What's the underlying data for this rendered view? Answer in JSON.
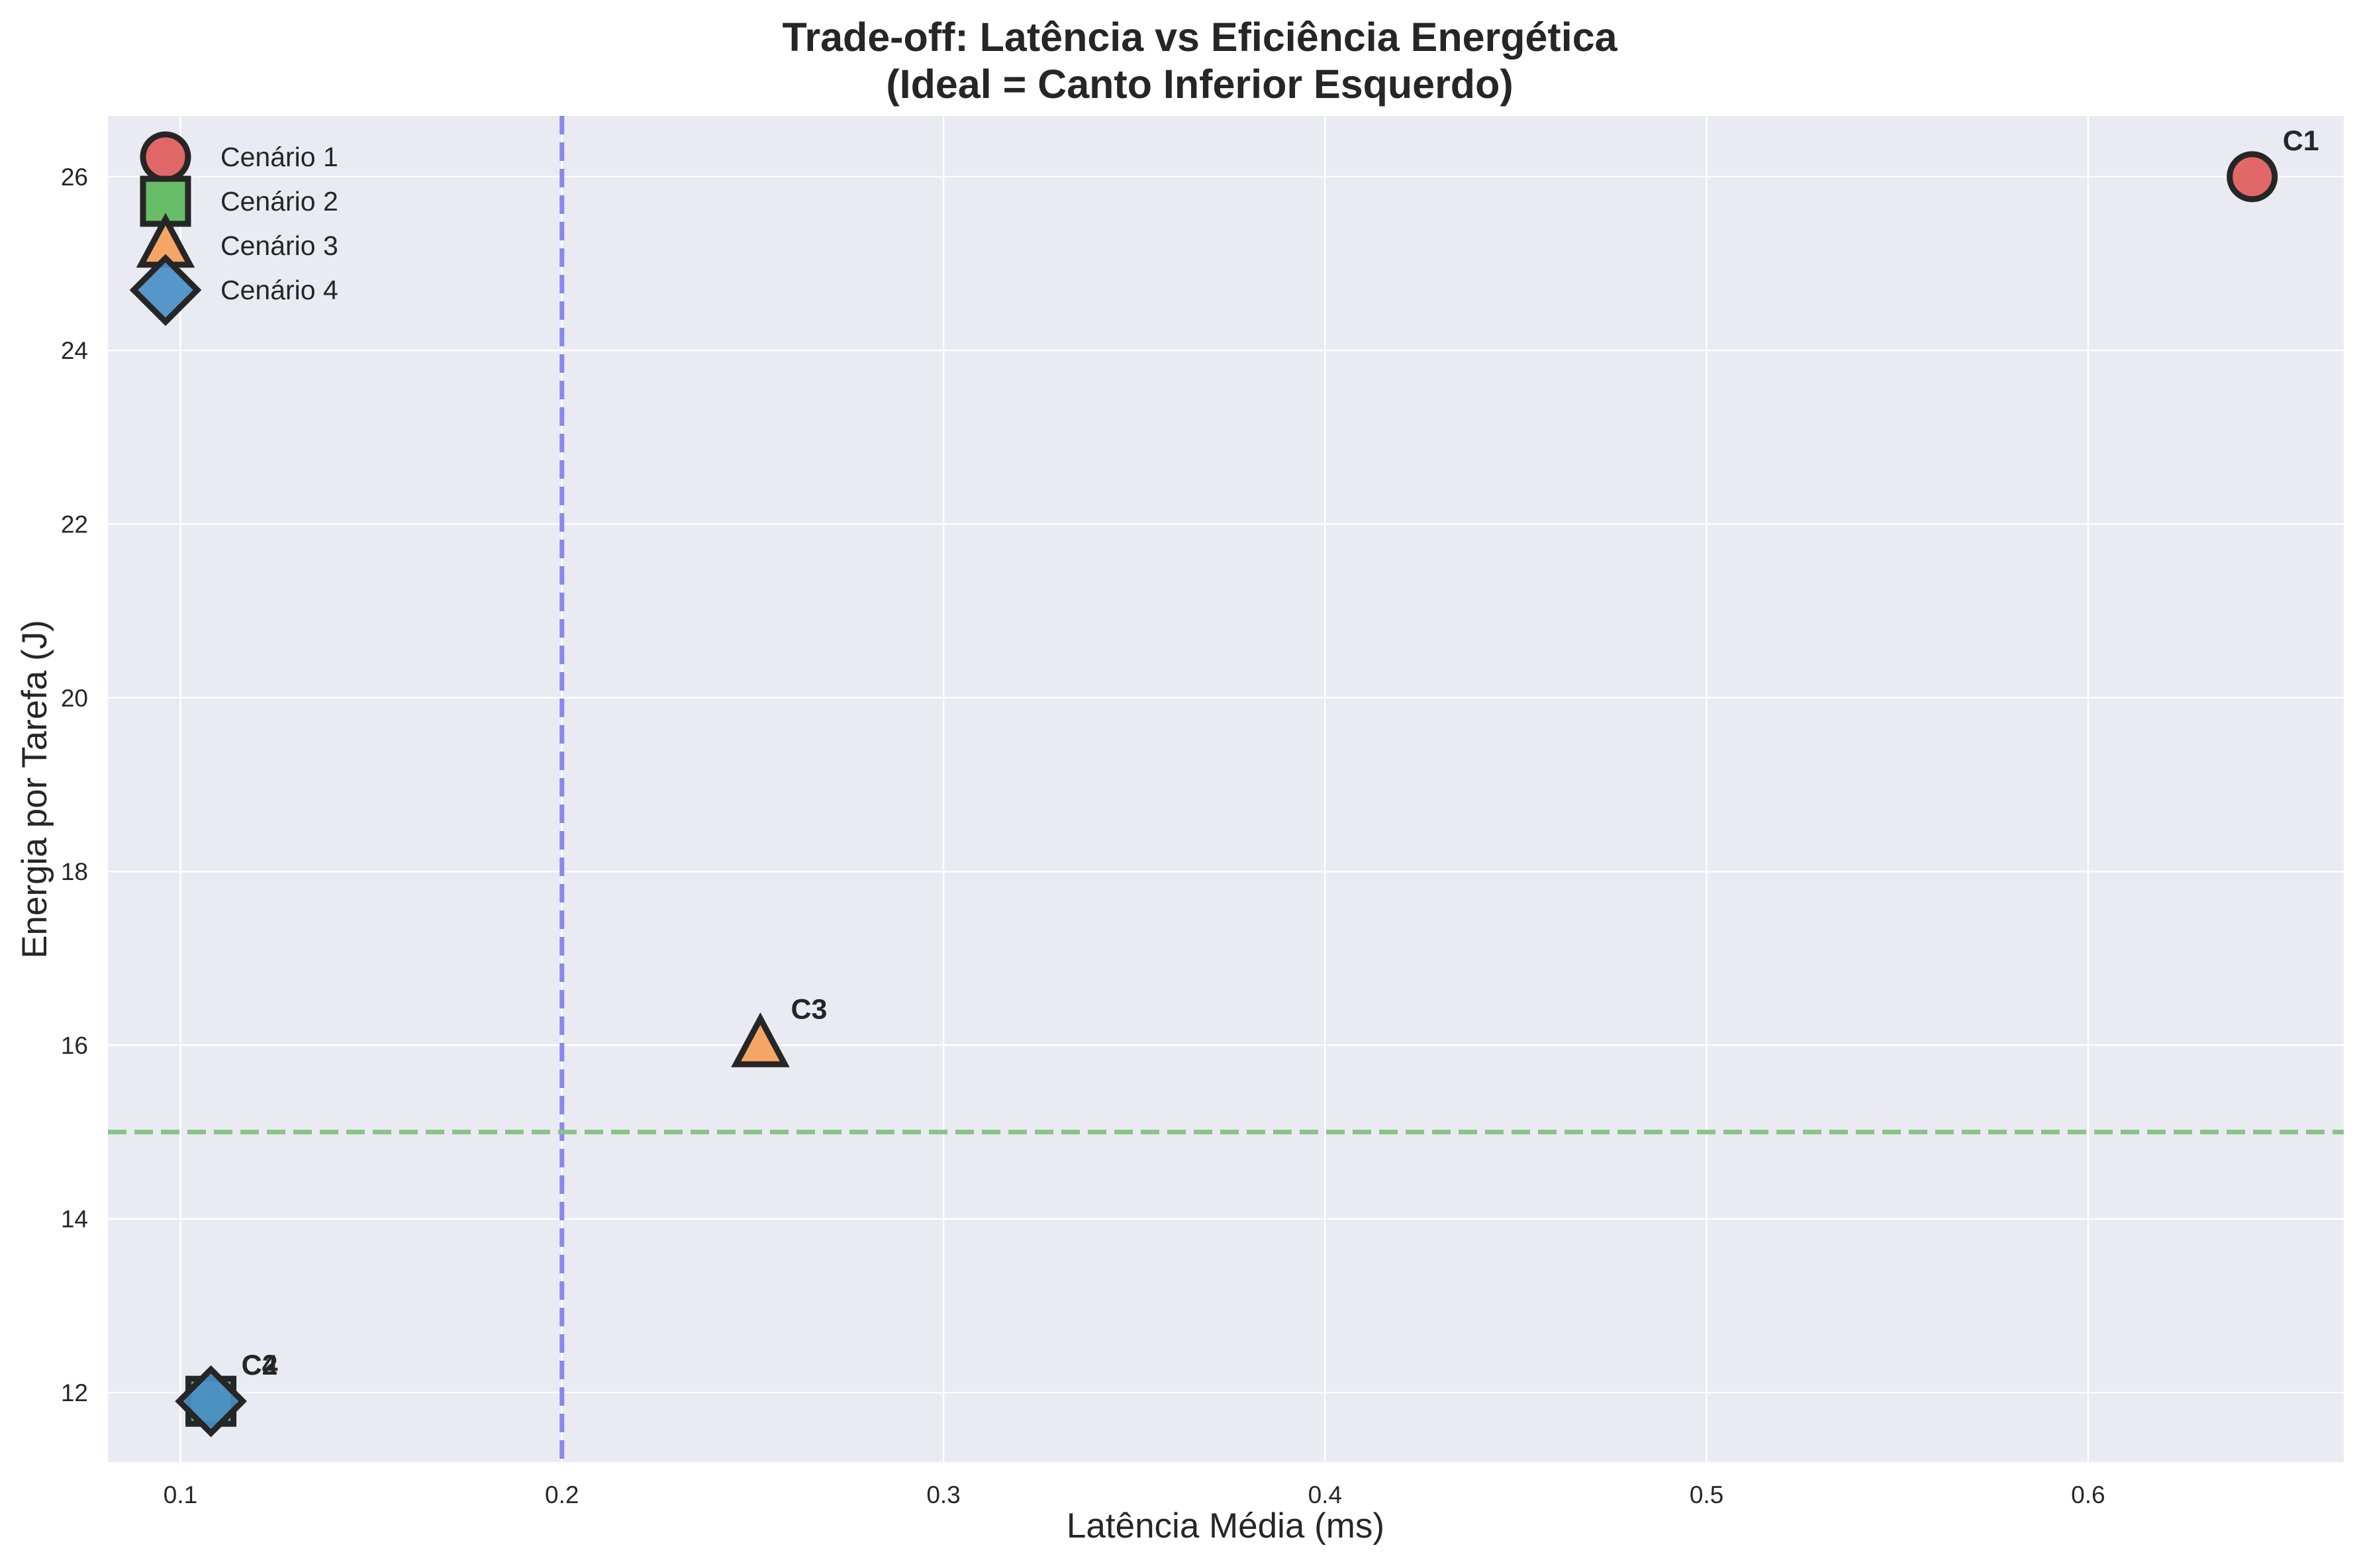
{
  "chart_data": {
    "type": "scatter",
    "title_line1": "Trade-off: Latência vs Eficiência Energética",
    "title_line2": "(Ideal = Canto Inferior Esquerdo)",
    "xlabel": "Latência Média (ms)",
    "ylabel": "Energia por Tarefa (J)",
    "xlim": [
      0.081,
      0.667
    ],
    "ylim": [
      11.2,
      26.7
    ],
    "xticks": [
      0.1,
      0.2,
      0.3,
      0.4,
      0.5,
      0.6
    ],
    "xtick_labels": [
      "0.1",
      "0.2",
      "0.3",
      "0.4",
      "0.5",
      "0.6"
    ],
    "yticks": [
      12,
      14,
      16,
      18,
      20,
      22,
      24,
      26
    ],
    "ytick_labels": [
      "12",
      "14",
      "16",
      "18",
      "20",
      "22",
      "24",
      "26"
    ],
    "grid": true,
    "legend_position": "top-left",
    "reference_lines": [
      {
        "orientation": "vertical",
        "value": 0.2,
        "color": "#8888ee",
        "style": "dashed"
      },
      {
        "orientation": "horizontal",
        "value": 15.0,
        "color": "#88c488",
        "style": "dashed"
      }
    ],
    "series": [
      {
        "name": "Cenário 1",
        "label": "C1",
        "marker": "circle",
        "color": "#e05c5c",
        "x": 0.643,
        "y": 26.0
      },
      {
        "name": "Cenário 2",
        "label": "C2",
        "marker": "square",
        "color": "#5cb85c",
        "x": 0.108,
        "y": 11.9
      },
      {
        "name": "Cenário 3",
        "label": "C3",
        "marker": "triangle",
        "color": "#f5a05a",
        "x": 0.252,
        "y": 16.0
      },
      {
        "name": "Cenário 4",
        "label": "C4",
        "marker": "diamond",
        "color": "#4a8ec8",
        "x": 0.108,
        "y": 11.9
      }
    ],
    "colors": {
      "plot_background": "#eaeaf2",
      "grid": "#ffffff",
      "marker_edge": "#262626",
      "overlap_fill": "#2e7f9a"
    }
  }
}
